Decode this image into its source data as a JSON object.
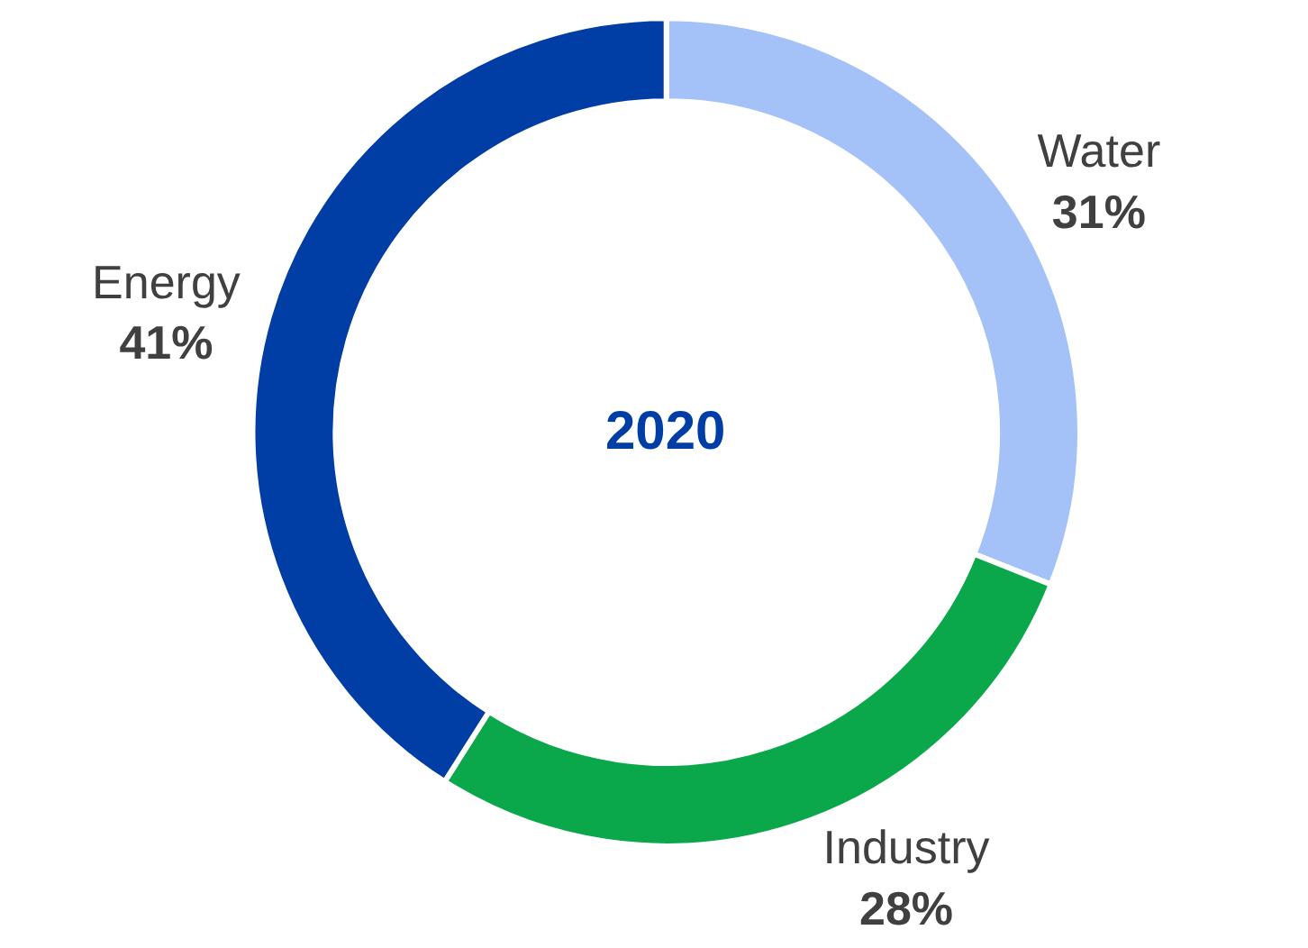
{
  "chart_data": {
    "type": "donut",
    "title": "2020",
    "categories": [
      "Water",
      "Industry",
      "Energy"
    ],
    "values": [
      31,
      28,
      41
    ],
    "value_labels": [
      "31%",
      "28%",
      "41%"
    ],
    "colors": [
      "#a4c2f8",
      "#0aa84a",
      "#003da5"
    ],
    "legend": false
  }
}
